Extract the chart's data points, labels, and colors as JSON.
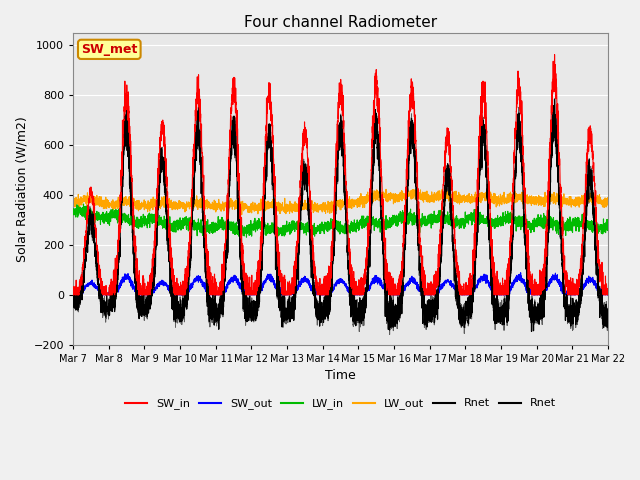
{
  "title": "Four channel Radiometer",
  "xlabel": "Time",
  "ylabel": "Solar Radiation (W/m2)",
  "ylim": [
    -200,
    1050
  ],
  "yticks": [
    -200,
    0,
    200,
    400,
    600,
    800,
    1000
  ],
  "annotation_text": "SW_met",
  "annotation_bg": "#FFFF99",
  "annotation_border": "#CC8800",
  "colors": {
    "SW_in": "#FF0000",
    "SW_out": "#0000FF",
    "LW_in": "#00BB00",
    "LW_out": "#FFA500",
    "Rnet1": "#000000",
    "Rnet2": "#000000"
  },
  "num_days": 15,
  "start_day": 7,
  "plot_bg": "#E8E8E8",
  "fig_bg": "#F0F0F0",
  "sw_in_peaks": [
    410,
    800,
    670,
    810,
    810,
    800,
    650,
    820,
    830,
    820,
    630,
    820,
    830,
    880,
    650
  ],
  "lw_out_vals": [
    370,
    360,
    355,
    355,
    350,
    345,
    345,
    350,
    390,
    390,
    380,
    380,
    375,
    370,
    368
  ],
  "lw_in_vals": [
    330,
    310,
    295,
    280,
    270,
    265,
    265,
    270,
    290,
    305,
    300,
    295,
    290,
    280,
    275
  ]
}
